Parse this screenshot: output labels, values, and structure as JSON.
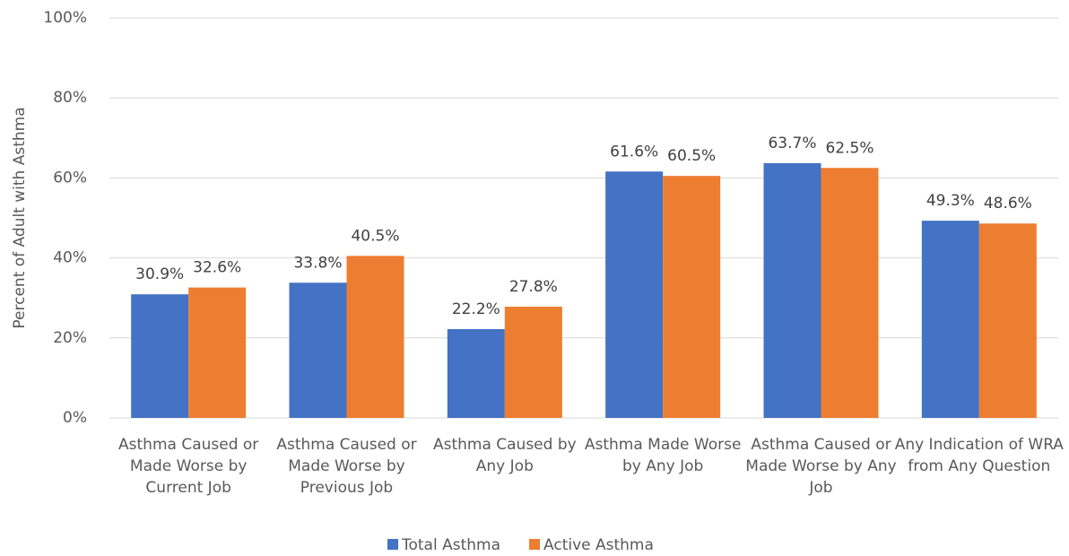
{
  "chart_data": {
    "type": "bar",
    "y_axis_label": "Percent of Adult with Asthma",
    "categories": [
      "Asthma Caused or Made Worse by Current Job",
      "Asthma Caused or Made Worse by Previous Job",
      "Asthma Caused by Any Job",
      "Asthma Made Worse by Any Job",
      "Asthma Caused or Made Worse by Any Job",
      "Any Indication of WRA from Any Question"
    ],
    "series": [
      {
        "name": "Total Asthma",
        "color": "#4472c4",
        "values": [
          30.9,
          33.8,
          22.2,
          61.6,
          63.7,
          49.3
        ],
        "value_labels": [
          "30.9%",
          "33.8%",
          "22.2%",
          "61.6%",
          "63.7%",
          "49.3%"
        ]
      },
      {
        "name": "Active Asthma",
        "color": "#ed7d31",
        "values": [
          32.6,
          40.5,
          27.8,
          60.5,
          62.5,
          48.6
        ],
        "value_labels": [
          "32.6%",
          "40.5%",
          "27.8%",
          "60.5%",
          "62.5%",
          "48.6%"
        ]
      }
    ],
    "ylim": [
      0,
      100
    ],
    "yticks": [
      {
        "value": 0,
        "label": "0%"
      },
      {
        "value": 20,
        "label": "20%"
      },
      {
        "value": 40,
        "label": "40%"
      },
      {
        "value": 60,
        "label": "60%"
      },
      {
        "value": 80,
        "label": "80%"
      },
      {
        "value": 100,
        "label": "100%"
      }
    ],
    "grid": true,
    "legend": "bottom"
  }
}
